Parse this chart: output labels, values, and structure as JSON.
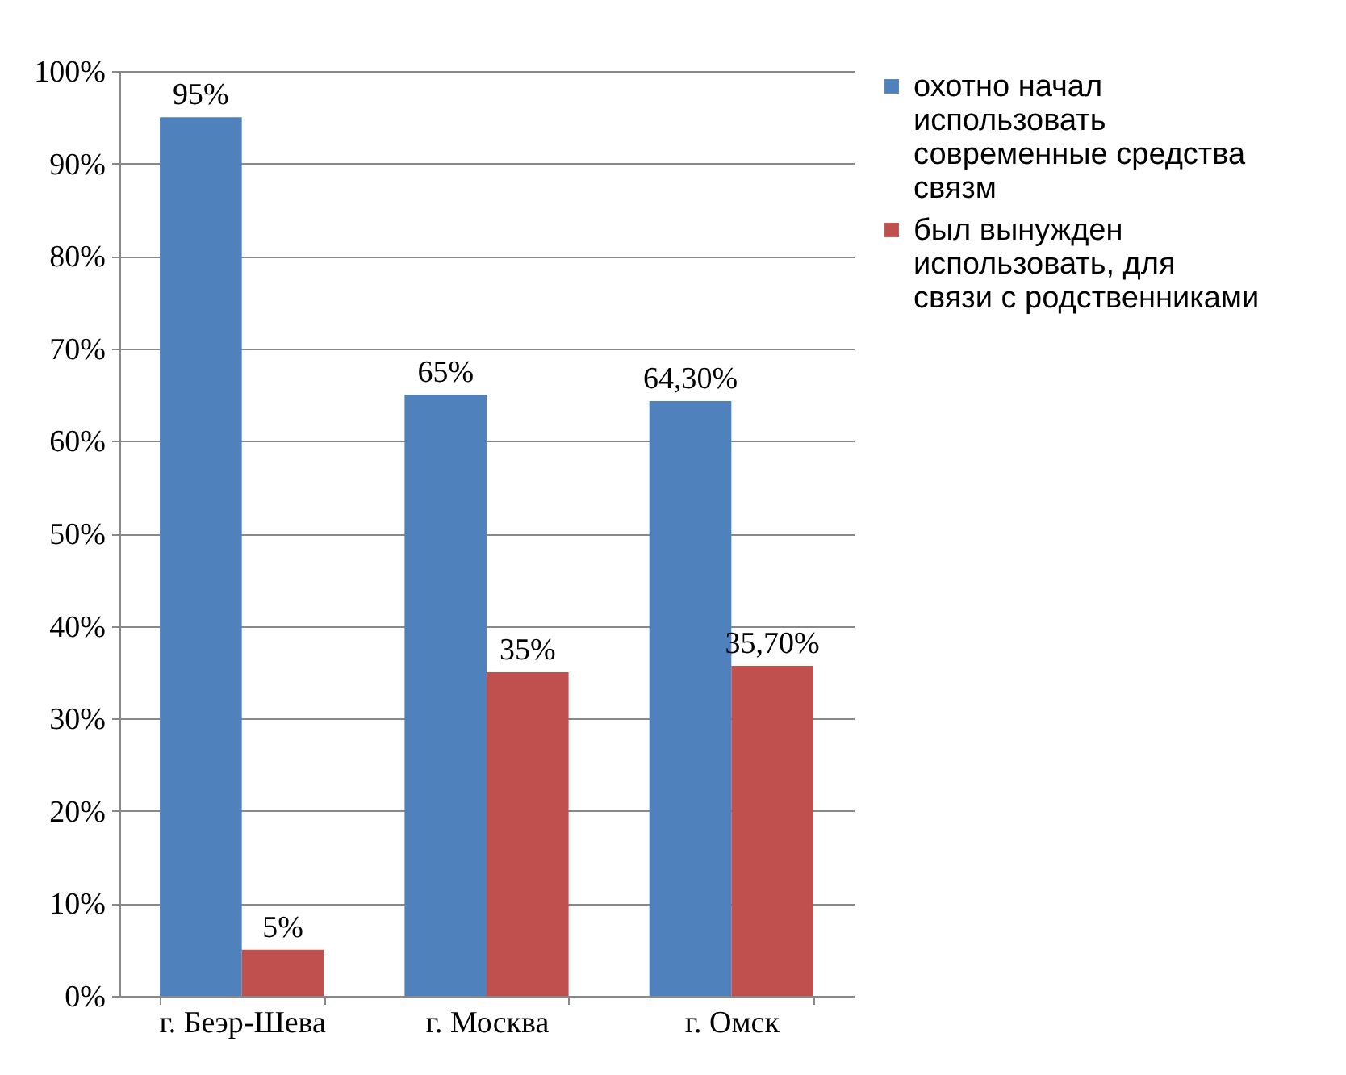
{
  "chart_data": {
    "type": "bar",
    "categories": [
      "г. Беэр-Шева",
      "г. Москва",
      "г. Омск"
    ],
    "series": [
      {
        "name": "охотно начал использовать современные средства связм",
        "color": "#4f81bd",
        "values": [
          95,
          65,
          64.3
        ],
        "value_labels": [
          "95%",
          "65%",
          "64,30%"
        ]
      },
      {
        "name": "был вынужден использовать, для связи с родственниками",
        "color": "#c0504d",
        "values": [
          5,
          35,
          35.7
        ],
        "value_labels": [
          "5%",
          "35%",
          "35,70%"
        ]
      }
    ],
    "ylim": [
      0,
      100
    ],
    "yticks": [
      {
        "value": 0,
        "label": "0%"
      },
      {
        "value": 10,
        "label": "10%"
      },
      {
        "value": 20,
        "label": "20%"
      },
      {
        "value": 30,
        "label": "30%"
      },
      {
        "value": 40,
        "label": "40%"
      },
      {
        "value": 50,
        "label": "50%"
      },
      {
        "value": 60,
        "label": "60%"
      },
      {
        "value": 70,
        "label": "70%"
      },
      {
        "value": 80,
        "label": "80%"
      },
      {
        "value": 90,
        "label": "90%"
      },
      {
        "value": 100,
        "label": "100%"
      }
    ],
    "grid": "y",
    "legend": "right"
  }
}
